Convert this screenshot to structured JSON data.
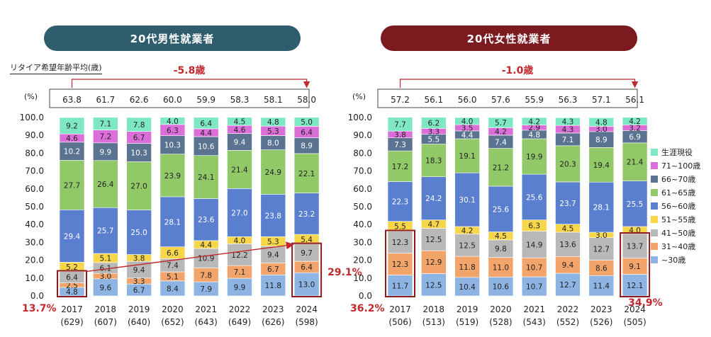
{
  "panels": {
    "male_title": "20代男性就業者",
    "female_title": "20代女性就業者",
    "caption": "リタイア希望年齢平均(歳)",
    "unit": "(%)"
  },
  "colors": {
    "~30歳": "#8db4e2",
    "31~40歳": "#f2a46a",
    "41~50歳": "#b8b8b8",
    "51~55歳": "#f7d64a",
    "56~60歳": "#5b7fcf",
    "61~65歳": "#92c968",
    "66~70歳": "#5a7390",
    "71~100歳": "#dc6ed9",
    "生涯現役": "#7ee8c5"
  },
  "chart_data": [
    {
      "type": "bar",
      "stacked": true,
      "title": "20代男性就業者",
      "ylabel": "(%)",
      "ylim": [
        0,
        100
      ],
      "yticks": [
        "0.0",
        "10.0",
        "20.0",
        "30.0",
        "40.0",
        "50.0",
        "60.0",
        "70.0",
        "80.0",
        "90.0",
        "100.0"
      ],
      "categories": [
        "2017",
        "2018",
        "2019",
        "2020",
        "2021",
        "2022",
        "2023",
        "2024"
      ],
      "sample_sizes": [
        "(629)",
        "(607)",
        "(640)",
        "(652)",
        "(643)",
        "(649)",
        "(626)",
        "(598)"
      ],
      "retirement_age_avg": [
        "63.8",
        "61.7",
        "62.6",
        "60.0",
        "59.9",
        "58.3",
        "58.1",
        "58.0"
      ],
      "change_annotation": "-5.8歳",
      "callouts": {
        "first": "13.7%",
        "last": "29.1%"
      },
      "series": [
        {
          "name": "~30歳",
          "values": [
            4.8,
            9.6,
            6.7,
            8.4,
            7.9,
            9.9,
            11.8,
            13.0
          ]
        },
        {
          "name": "31~40歳",
          "values": [
            2.5,
            3.0,
            3.3,
            5.1,
            7.8,
            7.1,
            6.7,
            6.4
          ]
        },
        {
          "name": "41~50歳",
          "values": [
            6.4,
            6.1,
            9.4,
            7.4,
            10.9,
            12.2,
            9.4,
            9.7
          ]
        },
        {
          "name": "51~55歳",
          "values": [
            5.2,
            5.1,
            3.8,
            6.6,
            4.4,
            4.0,
            5.3,
            5.4
          ]
        },
        {
          "name": "56~60歳",
          "values": [
            29.4,
            25.7,
            25.0,
            28.1,
            23.6,
            27.0,
            23.8,
            23.2
          ]
        },
        {
          "name": "61~65歳",
          "values": [
            27.7,
            26.4,
            27.0,
            23.9,
            24.1,
            21.4,
            24.9,
            22.1
          ]
        },
        {
          "name": "66~70歳",
          "values": [
            10.2,
            9.9,
            10.3,
            10.3,
            10.6,
            9.4,
            8.0,
            8.9
          ]
        },
        {
          "name": "71~100歳",
          "values": [
            4.6,
            7.2,
            6.7,
            6.3,
            4.4,
            4.6,
            5.3,
            6.4
          ]
        },
        {
          "name": "生涯現役",
          "values": [
            9.2,
            7.1,
            7.8,
            4.0,
            6.4,
            4.5,
            4.8,
            5.0
          ]
        }
      ]
    },
    {
      "type": "bar",
      "stacked": true,
      "title": "20代女性就業者",
      "ylabel": "(%)",
      "ylim": [
        0,
        100
      ],
      "yticks": [
        "0.0",
        "10.0",
        "20.0",
        "30.0",
        "40.0",
        "50.0",
        "60.0",
        "70.0",
        "80.0",
        "90.0",
        "100.0"
      ],
      "categories": [
        "2017",
        "2018",
        "2019",
        "2020",
        "2021",
        "2022",
        "2023",
        "2024"
      ],
      "sample_sizes": [
        "(506)",
        "(513)",
        "(519)",
        "(528)",
        "(543)",
        "(552)",
        "(526)",
        "(505)"
      ],
      "retirement_age_avg": [
        "57.2",
        "56.1",
        "56.0",
        "57.6",
        "55.9",
        "56.3",
        "57.1",
        "56.1"
      ],
      "change_annotation": "-1.0歳",
      "callouts": {
        "first": "36.2%",
        "last": "34.9%"
      },
      "series": [
        {
          "name": "~30歳",
          "values": [
            11.7,
            12.5,
            10.4,
            10.6,
            10.7,
            12.7,
            11.4,
            12.1
          ]
        },
        {
          "name": "31~40歳",
          "values": [
            12.3,
            12.9,
            11.8,
            11.0,
            10.7,
            9.4,
            8.6,
            9.1
          ]
        },
        {
          "name": "41~50歳",
          "values": [
            12.3,
            12.5,
            12.5,
            9.8,
            14.9,
            13.6,
            12.7,
            13.7
          ]
        },
        {
          "name": "51~55歳",
          "values": [
            5.5,
            4.7,
            4.2,
            4.5,
            6.3,
            4.5,
            3.0,
            4.0
          ]
        },
        {
          "name": "56~60歳",
          "values": [
            22.3,
            24.2,
            30.1,
            25.6,
            25.6,
            23.7,
            28.1,
            25.5
          ]
        },
        {
          "name": "61~65歳",
          "values": [
            17.2,
            18.3,
            19.1,
            21.2,
            19.9,
            20.3,
            19.4,
            21.4
          ]
        },
        {
          "name": "66~70歳",
          "values": [
            7.3,
            5.5,
            4.4,
            7.4,
            4.8,
            7.1,
            8.9,
            6.9
          ]
        },
        {
          "name": "71~100歳",
          "values": [
            3.8,
            3.3,
            3.5,
            4.2,
            2.9,
            4.3,
            3.0,
            3.2
          ]
        },
        {
          "name": "生涯現役",
          "values": [
            7.7,
            6.2,
            4.0,
            5.7,
            4.2,
            4.3,
            4.8,
            4.2
          ]
        }
      ]
    }
  ],
  "legend": [
    "生涯現役",
    "71~100歳",
    "66~70歳",
    "61~65歳",
    "56~60歳",
    "51~55歳",
    "41~50歳",
    "31~40歳",
    "~30歳"
  ]
}
